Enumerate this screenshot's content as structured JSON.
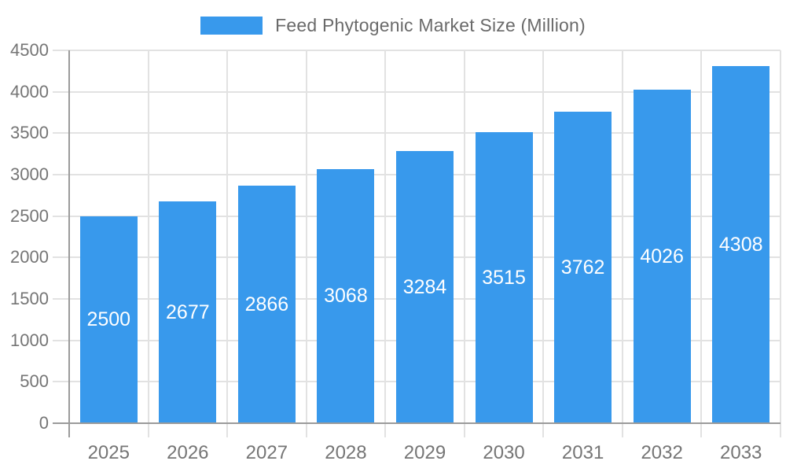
{
  "chart_data": {
    "type": "bar",
    "title": "Feed Phytogenic Market Size (Million)",
    "categories": [
      "2025",
      "2026",
      "2027",
      "2028",
      "2029",
      "2030",
      "2031",
      "2032",
      "2033"
    ],
    "series": [
      {
        "name": "Feed Phytogenic Market Size (Million)",
        "values": [
          2500,
          2677,
          2866,
          3068,
          3284,
          3515,
          3762,
          4026,
          4308
        ]
      }
    ],
    "xlabel": "",
    "ylabel": "",
    "ylim": [
      0,
      4500
    ],
    "ytick_step": 500,
    "yticks": [
      0,
      500,
      1000,
      1500,
      2000,
      2500,
      3000,
      3500,
      4000,
      4500
    ],
    "grid": true,
    "legend_position": "top-center",
    "value_labels": "inside-center"
  },
  "legend": {
    "label": "Feed Phytogenic Market Size (Million)"
  },
  "colors": {
    "bar": "#3899EC",
    "axis_line": "#9b9b9b",
    "grid_line": "#e2e2e2",
    "axis_text": "#757575",
    "legend_text": "#6a6a6a",
    "value_label_text": "#ffffff",
    "background": "#ffffff"
  }
}
